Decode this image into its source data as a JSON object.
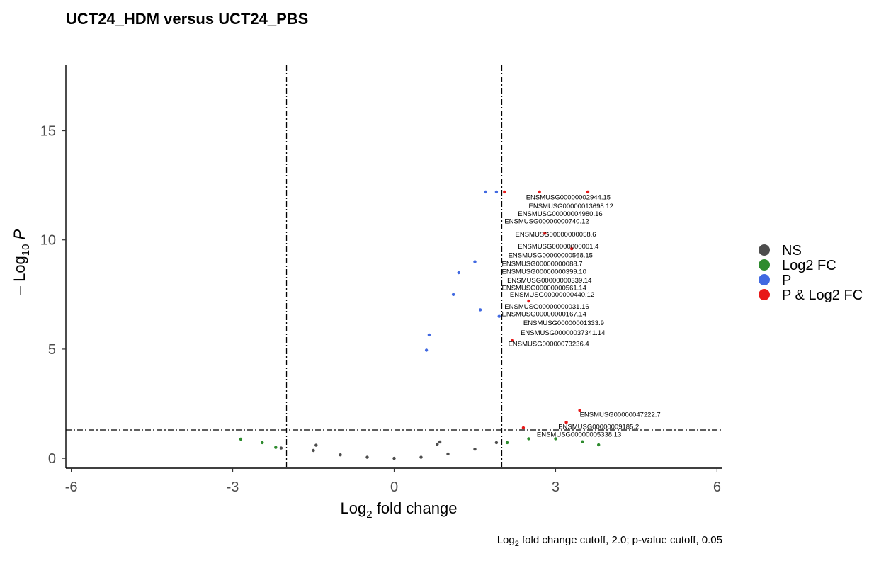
{
  "chart_data": {
    "type": "scatter",
    "title": "UCT24_HDM versus UCT24_PBS",
    "xlabel": {
      "prefix": "Log",
      "sub": "2",
      "suffix": " fold change"
    },
    "ylabel": {
      "prefix": "– Log",
      "sub": "10",
      "suffix": " P"
    },
    "caption": {
      "prefix": "Log",
      "sub": "2",
      "suffix": " fold change cutoff, 2.0; p-value cutoff, 0.05"
    },
    "xlim": [
      -6.1,
      6.1
    ],
    "ylim": [
      -0.45,
      18
    ],
    "xticks": [
      -6,
      -3,
      0,
      3,
      6
    ],
    "yticks": [
      0,
      5,
      10,
      15
    ],
    "grid": false,
    "cutoffs": {
      "log2fc": [
        -2,
        2
      ],
      "neg_log10_p": 1.3
    },
    "legend": {
      "position": "right",
      "entries": [
        {
          "label": "NS",
          "color": "#4d4d4d"
        },
        {
          "label": "Log2 FC",
          "color": "#2e8b2e"
        },
        {
          "label": "P",
          "color": "#4169e1"
        },
        {
          "label": "P & Log2 FC",
          "color": "#e81818"
        }
      ]
    },
    "colors": {
      "NS": "#4d4d4d",
      "FC": "#2e8b2e",
      "P": "#4169e1",
      "P_FC": "#e81818"
    },
    "series": [
      {
        "name": "NS",
        "points": [
          [
            -2.1,
            0.47
          ],
          [
            -1.5,
            0.36
          ],
          [
            -1.0,
            0.16
          ],
          [
            -0.5,
            0.05
          ],
          [
            0,
            0
          ],
          [
            0.5,
            0.05
          ],
          [
            1.0,
            0.2
          ],
          [
            1.5,
            0.42
          ],
          [
            1.9,
            0.72
          ],
          [
            -1.45,
            0.6
          ],
          [
            0.85,
            0.75
          ],
          [
            0.8,
            0.65
          ]
        ]
      },
      {
        "name": "Log2 FC",
        "points": [
          [
            -2.85,
            0.88
          ],
          [
            -2.45,
            0.72
          ],
          [
            -2.2,
            0.5
          ],
          [
            2.1,
            0.72
          ],
          [
            2.5,
            0.9
          ],
          [
            3.0,
            0.9
          ],
          [
            3.5,
            0.76
          ],
          [
            3.8,
            0.62
          ]
        ]
      },
      {
        "name": "P",
        "points": [
          [
            0.65,
            5.65
          ],
          [
            0.6,
            4.95
          ],
          [
            1.5,
            9.0
          ],
          [
            1.7,
            12.2
          ],
          [
            1.9,
            12.2
          ],
          [
            1.2,
            8.5
          ],
          [
            1.1,
            7.5
          ],
          [
            1.6,
            6.8
          ],
          [
            1.95,
            6.5
          ]
        ]
      },
      {
        "name": "P & Log2 FC",
        "points": [
          [
            2.05,
            12.2
          ],
          [
            2.7,
            12.2
          ],
          [
            3.6,
            12.2
          ],
          [
            3.3,
            9.6
          ],
          [
            2.2,
            5.4
          ],
          [
            2.5,
            7.2
          ],
          [
            2.8,
            10.3
          ],
          [
            3.45,
            2.2
          ],
          [
            3.2,
            1.65
          ],
          [
            2.4,
            1.4
          ]
        ]
      }
    ],
    "labels": [
      {
        "text": "ENSMUSG00000002944.15",
        "x": 2.45,
        "y": 11.85
      },
      {
        "text": "ENSMUSG00000013698.12",
        "x": 2.5,
        "y": 11.45
      },
      {
        "text": "ENSMUSG00000004980.16",
        "x": 2.3,
        "y": 11.1
      },
      {
        "text": "ENSMUSG00000000740.12",
        "x": 2.05,
        "y": 10.75
      },
      {
        "text": "ENSMUSG00000000058.6",
        "x": 2.25,
        "y": 10.15
      },
      {
        "text": "ENSMUSG00000000001.4",
        "x": 2.3,
        "y": 9.6
      },
      {
        "text": "ENSMUSG00000000568.15",
        "x": 2.12,
        "y": 9.2
      },
      {
        "text": "ENSMUSG00000000088.7",
        "x": 2.0,
        "y": 8.8
      },
      {
        "text": "ENSMUSG00000000399.10",
        "x": 2.0,
        "y": 8.45
      },
      {
        "text": "ENSMUSG00000000339.14",
        "x": 2.1,
        "y": 8.05
      },
      {
        "text": "ENSMUSG00000000561.14",
        "x": 2.0,
        "y": 7.7
      },
      {
        "text": "ENSMUSG00000000440.12",
        "x": 2.15,
        "y": 7.4
      },
      {
        "text": "ENSMUSG00000000031.16",
        "x": 2.05,
        "y": 6.85
      },
      {
        "text": "ENSMUSG00000000167.14",
        "x": 2.0,
        "y": 6.5
      },
      {
        "text": "ENSMUSG00000001333.9",
        "x": 2.4,
        "y": 6.1
      },
      {
        "text": "ENSMUSG00000037341.14",
        "x": 2.35,
        "y": 5.65
      },
      {
        "text": "ENSMUSG00000073236.4",
        "x": 2.12,
        "y": 5.15
      },
      {
        "text": "ENSMUSG00000047222.7",
        "x": 3.45,
        "y": 1.9
      },
      {
        "text": "ENSMUSG00000009185.2",
        "x": 3.05,
        "y": 1.35
      },
      {
        "text": "ENSMUSG00000005338.13",
        "x": 2.65,
        "y": 1.0
      }
    ]
  }
}
